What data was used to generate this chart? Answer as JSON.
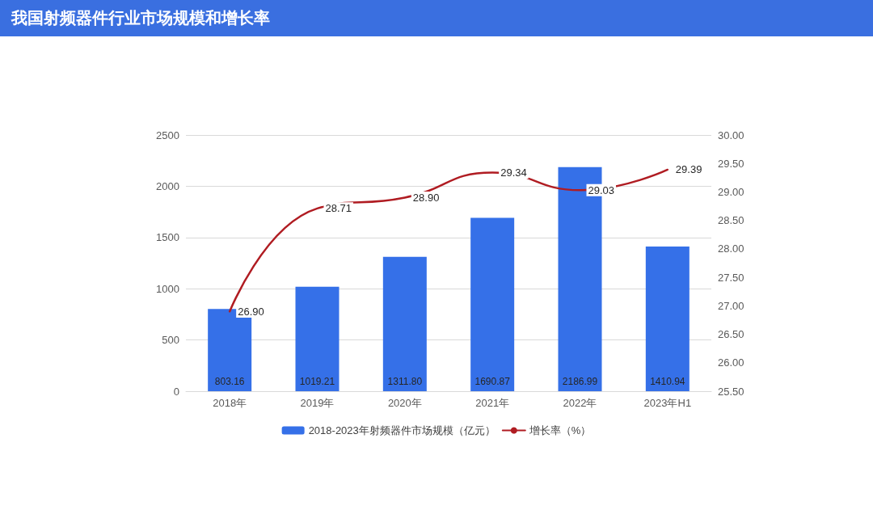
{
  "chart_data": {
    "type": "bar",
    "title": "我国射频器件行业市场规模和增长率",
    "categories": [
      "2018年",
      "2019年",
      "2020年",
      "2021年",
      "2022年",
      "2023年H1"
    ],
    "series": [
      {
        "name": "2018-2023年射频器件市场规模（亿元）",
        "color": "#3570e8",
        "values": [
          803.16,
          1019.21,
          1311.8,
          1690.87,
          2186.99,
          1410.94
        ],
        "value_labels": [
          "803.16",
          "1019.21",
          "1311.80",
          "1690.87",
          "2186.99",
          "1410.94"
        ]
      },
      {
        "name": "增长率（%）",
        "type": "line",
        "axis": "y2",
        "color": "#b01c22",
        "values": [
          26.9,
          28.71,
          28.9,
          29.34,
          29.03,
          29.39
        ],
        "value_labels": [
          "26.90",
          "28.71",
          "28.90",
          "29.34",
          "29.03",
          "29.39"
        ]
      }
    ],
    "ylim": [
      0,
      2500
    ],
    "yticks": [
      0,
      500,
      1000,
      1500,
      2000,
      2500
    ],
    "y2lim": [
      25.5,
      30
    ],
    "y2ticks": [
      {
        "value": 25.5,
        "label": "25.50"
      },
      {
        "value": 26,
        "label": "26.00"
      },
      {
        "value": 26.5,
        "label": "26.50"
      },
      {
        "value": 27,
        "label": "27.00"
      },
      {
        "value": 27.5,
        "label": "27.50"
      },
      {
        "value": 28,
        "label": "28.00"
      },
      {
        "value": 28.5,
        "label": "28.50"
      },
      {
        "value": 29,
        "label": "29.00"
      },
      {
        "value": 29.5,
        "label": "29.50"
      },
      {
        "value": 30,
        "label": "30.00"
      }
    ],
    "grid": "y",
    "legend": "bottom",
    "marker": "none",
    "line_style": "solid"
  }
}
